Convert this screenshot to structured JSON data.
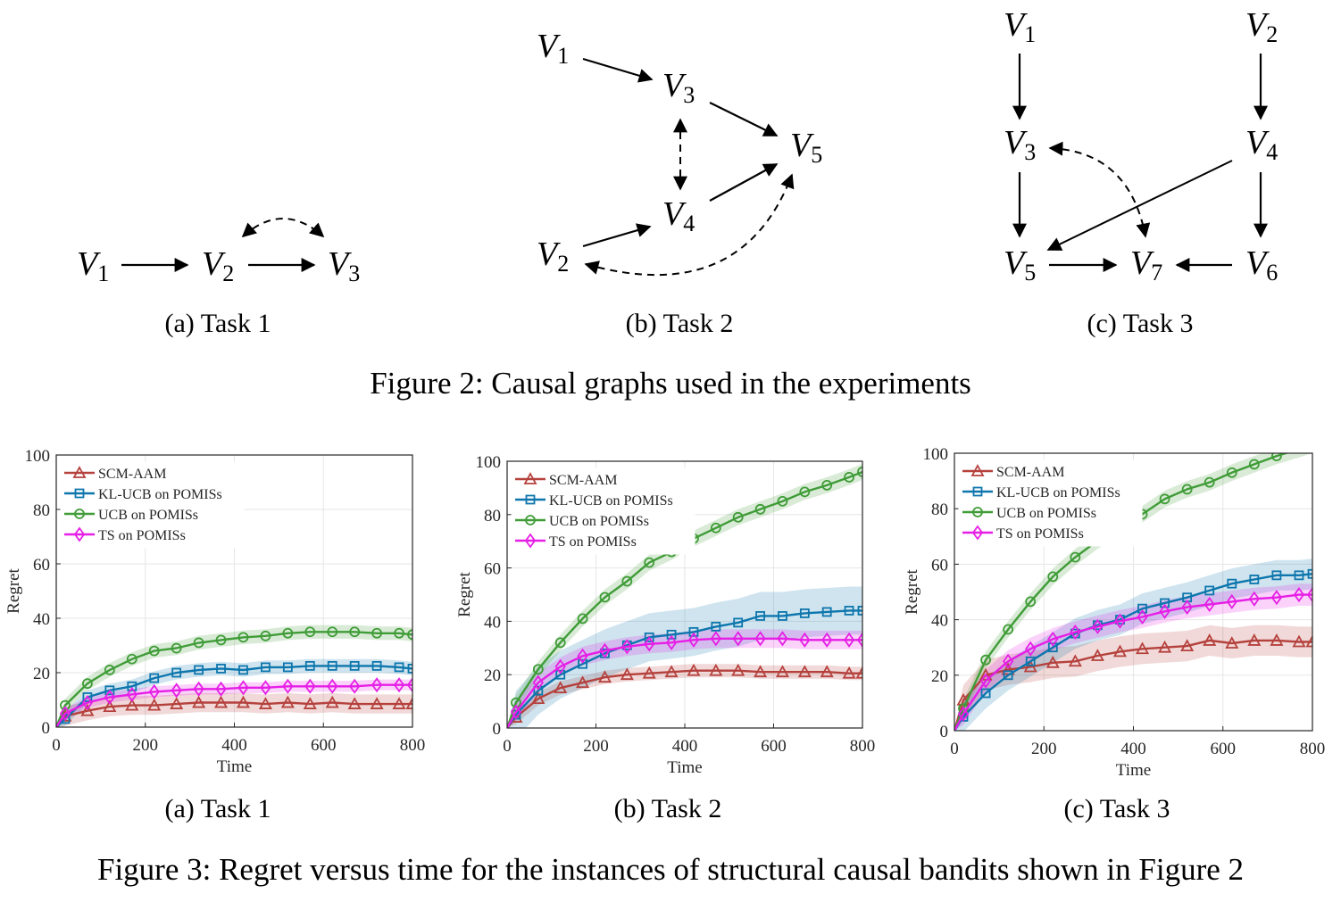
{
  "figure2": {
    "caption": "Figure 2: Causal graphs used in the experiments",
    "graphs": [
      {
        "subcaption": "(a) Task 1",
        "nodes": [
          {
            "id": "V1",
            "base": "V",
            "sub": "1"
          },
          {
            "id": "V2",
            "base": "V",
            "sub": "2"
          },
          {
            "id": "V3",
            "base": "V",
            "sub": "3"
          }
        ],
        "directed_edges": [
          [
            "V1",
            "V2"
          ],
          [
            "V2",
            "V3"
          ]
        ],
        "bidirected_edges": [
          [
            "V2",
            "V3"
          ]
        ]
      },
      {
        "subcaption": "(b) Task 2",
        "nodes": [
          {
            "id": "V1",
            "base": "V",
            "sub": "1"
          },
          {
            "id": "V2",
            "base": "V",
            "sub": "2"
          },
          {
            "id": "V3",
            "base": "V",
            "sub": "3"
          },
          {
            "id": "V4",
            "base": "V",
            "sub": "4"
          },
          {
            "id": "V5",
            "base": "V",
            "sub": "5"
          }
        ],
        "directed_edges": [
          [
            "V1",
            "V3"
          ],
          [
            "V3",
            "V5"
          ],
          [
            "V2",
            "V4"
          ],
          [
            "V4",
            "V5"
          ]
        ],
        "bidirected_edges": [
          [
            "V3",
            "V4"
          ],
          [
            "V2",
            "V5"
          ]
        ]
      },
      {
        "subcaption": "(c) Task 3",
        "nodes": [
          {
            "id": "V1",
            "base": "V",
            "sub": "1"
          },
          {
            "id": "V2",
            "base": "V",
            "sub": "2"
          },
          {
            "id": "V3",
            "base": "V",
            "sub": "3"
          },
          {
            "id": "V4",
            "base": "V",
            "sub": "4"
          },
          {
            "id": "V5",
            "base": "V",
            "sub": "5"
          },
          {
            "id": "V6",
            "base": "V",
            "sub": "6"
          },
          {
            "id": "V7",
            "base": "V",
            "sub": "7"
          }
        ],
        "directed_edges": [
          [
            "V1",
            "V3"
          ],
          [
            "V2",
            "V4"
          ],
          [
            "V3",
            "V5"
          ],
          [
            "V4",
            "V6"
          ],
          [
            "V4",
            "V5"
          ],
          [
            "V5",
            "V7"
          ],
          [
            "V6",
            "V7"
          ]
        ],
        "bidirected_edges": [
          [
            "V3",
            "V7"
          ]
        ]
      }
    ]
  },
  "figure3": {
    "caption": "Figure 3: Regret versus time for the instances of structural causal bandits shown in Figure 2",
    "subcaptions": [
      "(a) Task 1",
      "(b) Task 2",
      "(c) Task 3"
    ]
  },
  "chart_data": [
    {
      "type": "line",
      "xlabel": "Time",
      "ylabel": "Regret",
      "xlim": [
        0,
        800
      ],
      "ylim": [
        0,
        100
      ],
      "xticks": [
        "0",
        "200",
        "400",
        "600",
        "800"
      ],
      "yticks": [
        "0",
        "20",
        "40",
        "60",
        "80",
        "100"
      ],
      "grid": true,
      "legend_position": "top-left",
      "x": [
        0,
        20,
        70,
        120,
        170,
        220,
        270,
        320,
        370,
        420,
        470,
        520,
        570,
        620,
        670,
        720,
        770,
        800
      ],
      "series": [
        {
          "name": "SCM-AAM",
          "color": "#b5413d",
          "marker": "triangle",
          "values": [
            0,
            4,
            6,
            7.5,
            8,
            8,
            8.5,
            9,
            9,
            9,
            8.5,
            9,
            8.5,
            9,
            8.5,
            8.5,
            8.5,
            8.5
          ],
          "band": 3.5
        },
        {
          "name": "KL-UCB on POMISs",
          "color": "#0d76ad",
          "marker": "square",
          "values": [
            0,
            3,
            11,
            13.5,
            15,
            18,
            20,
            21,
            21.5,
            21,
            22,
            22,
            22.5,
            22.5,
            22.5,
            22.5,
            22,
            21.5
          ],
          "band": 2.5
        },
        {
          "name": "UCB on POMISs",
          "color": "#3f9c37",
          "marker": "circle",
          "values": [
            0,
            8,
            16,
            21,
            25,
            28,
            29,
            31,
            32,
            33,
            33.5,
            34.5,
            35,
            35,
            35,
            34.5,
            34.5,
            34
          ],
          "band": 2.5
        },
        {
          "name": "TS on POMISs",
          "color": "#e61ee6",
          "marker": "diamond",
          "values": [
            0,
            5,
            9,
            11,
            12,
            13,
            13.5,
            14,
            14,
            14.5,
            14.5,
            15,
            15,
            15,
            15,
            15.5,
            15.5,
            15.5
          ],
          "band": 2
        }
      ]
    },
    {
      "type": "line",
      "xlabel": "Time",
      "ylabel": "Regret",
      "xlim": [
        0,
        800
      ],
      "ylim": [
        0,
        100
      ],
      "xticks": [
        "0",
        "200",
        "400",
        "600",
        "800"
      ],
      "yticks": [
        "0",
        "20",
        "40",
        "60",
        "80",
        "100"
      ],
      "grid": true,
      "legend_position": "top-left",
      "x": [
        0,
        20,
        70,
        120,
        170,
        220,
        270,
        320,
        370,
        420,
        470,
        520,
        570,
        620,
        670,
        720,
        770,
        800
      ],
      "series": [
        {
          "name": "SCM-AAM",
          "color": "#b5413d",
          "marker": "triangle",
          "values": [
            0,
            4,
            11,
            15,
            17,
            19,
            20,
            20.5,
            21,
            21.5,
            21.5,
            21.5,
            21,
            21,
            21,
            21,
            20.5,
            20.5
          ],
          "band": 2.5
        },
        {
          "name": "KL-UCB on POMISs",
          "color": "#0d76ad",
          "marker": "square",
          "values": [
            0,
            5,
            14,
            20,
            24,
            28,
            31,
            34,
            35,
            36,
            38,
            39.5,
            42,
            42,
            43,
            43.5,
            44,
            44
          ],
          "band": 9
        },
        {
          "name": "UCB on POMISs",
          "color": "#3f9c37",
          "marker": "circle",
          "values": [
            0,
            9.5,
            22,
            32,
            41,
            49,
            55,
            62,
            66,
            71,
            75,
            79,
            82,
            85,
            88.5,
            91,
            94,
            96
          ],
          "band": 3
        },
        {
          "name": "TS on POMISs",
          "color": "#e61ee6",
          "marker": "diamond",
          "values": [
            0,
            6,
            17,
            23,
            27,
            29,
            30.5,
            31.5,
            32,
            33,
            33.5,
            33.5,
            33.5,
            33.5,
            33,
            33,
            33,
            33
          ],
          "band": 3.5
        }
      ]
    },
    {
      "type": "line",
      "xlabel": "Time",
      "ylabel": "Regret",
      "xlim": [
        0,
        800
      ],
      "ylim": [
        0,
        100
      ],
      "xticks": [
        "0",
        "200",
        "400",
        "600",
        "800"
      ],
      "yticks": [
        "0",
        "20",
        "40",
        "60",
        "80",
        "100"
      ],
      "grid": true,
      "legend_position": "top-left",
      "x": [
        0,
        20,
        70,
        120,
        170,
        220,
        270,
        320,
        370,
        420,
        470,
        520,
        570,
        620,
        670,
        720,
        770,
        800
      ],
      "series": [
        {
          "name": "SCM-AAM",
          "color": "#b5413d",
          "marker": "triangle",
          "values": [
            0,
            11,
            20,
            22,
            23,
            24.5,
            25,
            27,
            28.5,
            29.5,
            30,
            30.5,
            32.5,
            31.5,
            32.5,
            32.5,
            32,
            32
          ],
          "band": 5.5
        },
        {
          "name": "KL-UCB on POMISs",
          "color": "#0d76ad",
          "marker": "square",
          "values": [
            0,
            5,
            13.5,
            20,
            25,
            30,
            35,
            38,
            40,
            44,
            46,
            48,
            50.5,
            53,
            54.5,
            56,
            56,
            56.5
          ],
          "band": 5.5
        },
        {
          "name": "UCB on POMISs",
          "color": "#3f9c37",
          "marker": "circle",
          "values": [
            0,
            8,
            25.5,
            36.5,
            46.5,
            55.5,
            62.5,
            68.5,
            73.5,
            78,
            83.5,
            87,
            89.5,
            93,
            96,
            99,
            101.5,
            103
          ],
          "band": 3
        },
        {
          "name": "TS on POMISs",
          "color": "#e61ee6",
          "marker": "diamond",
          "values": [
            0,
            6,
            18,
            25,
            29.5,
            33,
            35.5,
            37.5,
            39.5,
            41,
            43,
            44.5,
            45.5,
            46.5,
            47.5,
            48,
            49,
            49
          ],
          "band": 4
        }
      ]
    }
  ]
}
